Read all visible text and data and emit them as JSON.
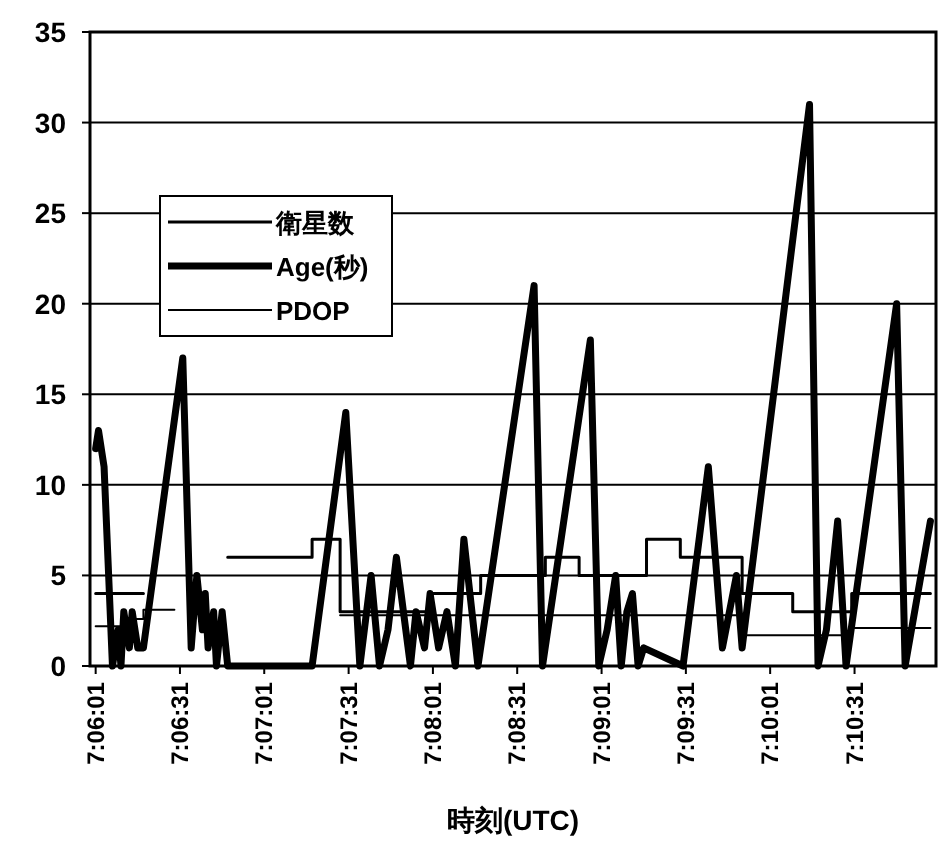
{
  "chart_data": {
    "type": "line",
    "xlabel": "時刻(UTC)",
    "xlim": [
      7.09972,
      7.18333
    ],
    "xticks": [
      {
        "value": 7.10028,
        "label": "7:06:01"
      },
      {
        "value": 7.10861,
        "label": "7:06:31"
      },
      {
        "value": 7.11694,
        "label": "7:07:01"
      },
      {
        "value": 7.12528,
        "label": "7:07:31"
      },
      {
        "value": 7.13361,
        "label": "7:08:01"
      },
      {
        "value": 7.14194,
        "label": "7:08:31"
      },
      {
        "value": 7.15028,
        "label": "7:09:01"
      },
      {
        "value": 7.15861,
        "label": "7:09:31"
      },
      {
        "value": 7.16694,
        "label": "7:10:01"
      },
      {
        "value": 7.17528,
        "label": "7:10:31"
      }
    ],
    "ylim": [
      0,
      35
    ],
    "yticks": [
      0,
      5,
      10,
      15,
      20,
      25,
      30,
      35
    ],
    "grid": "y",
    "legend": "left",
    "series": [
      {
        "name": "衛星数",
        "type": "step",
        "color": "#000000",
        "x": [
          7.10028,
          7.105,
          7.11333,
          7.12167,
          7.12444,
          7.13333,
          7.13833,
          7.14472,
          7.14806,
          7.15472,
          7.15806,
          7.16417,
          7.16917,
          7.175,
          7.18278
        ],
        "values": [
          4,
          null,
          6,
          7,
          3,
          4,
          5,
          6,
          5,
          7,
          6,
          4,
          3,
          4,
          4
        ]
      },
      {
        "name": "Age(秒)",
        "type": "line",
        "color": "#000000",
        "x": [
          7.10028,
          7.10056,
          7.10111,
          7.10194,
          7.1025,
          7.10278,
          7.10306,
          7.10361,
          7.10389,
          7.10444,
          7.105,
          7.10889,
          7.10972,
          7.11028,
          7.11083,
          7.11111,
          7.11139,
          7.11194,
          7.11222,
          7.11278,
          7.11333,
          7.12167,
          7.125,
          7.12639,
          7.1275,
          7.12833,
          7.12917,
          7.13,
          7.13139,
          7.13194,
          7.13278,
          7.13333,
          7.13417,
          7.135,
          7.13583,
          7.13667,
          7.13806,
          7.14361,
          7.14444,
          7.14917,
          7.15,
          7.15083,
          7.15167,
          7.15222,
          7.15278,
          7.15333,
          7.15389,
          7.15444,
          7.15833,
          7.16083,
          7.16222,
          7.16361,
          7.16417,
          7.17083,
          7.17167,
          7.1725,
          7.17361,
          7.17444,
          7.17944,
          7.18028,
          7.18278
        ],
        "values": [
          12,
          13,
          11,
          0,
          2,
          0,
          3,
          1,
          3,
          1,
          1,
          17,
          1,
          5,
          2,
          4,
          1,
          3,
          0,
          3,
          0,
          0,
          14,
          0,
          5,
          0,
          2,
          6,
          0,
          3,
          1,
          4,
          1,
          3,
          0,
          7,
          0,
          21,
          0,
          18,
          0,
          2,
          5,
          0,
          3,
          4,
          0,
          1,
          0,
          11,
          1,
          5,
          1,
          31,
          0,
          2,
          8,
          0,
          20,
          0,
          8
        ]
      },
      {
        "name": "PDOP",
        "type": "step",
        "color": "#000000",
        "x": [
          7.10028,
          7.10306,
          7.105,
          7.10806,
          7.12444,
          7.16417,
          7.175,
          7.18278
        ],
        "values": [
          2.2,
          2.6,
          3.1,
          null,
          2.8,
          1.7,
          2.1,
          2.1
        ]
      }
    ]
  }
}
